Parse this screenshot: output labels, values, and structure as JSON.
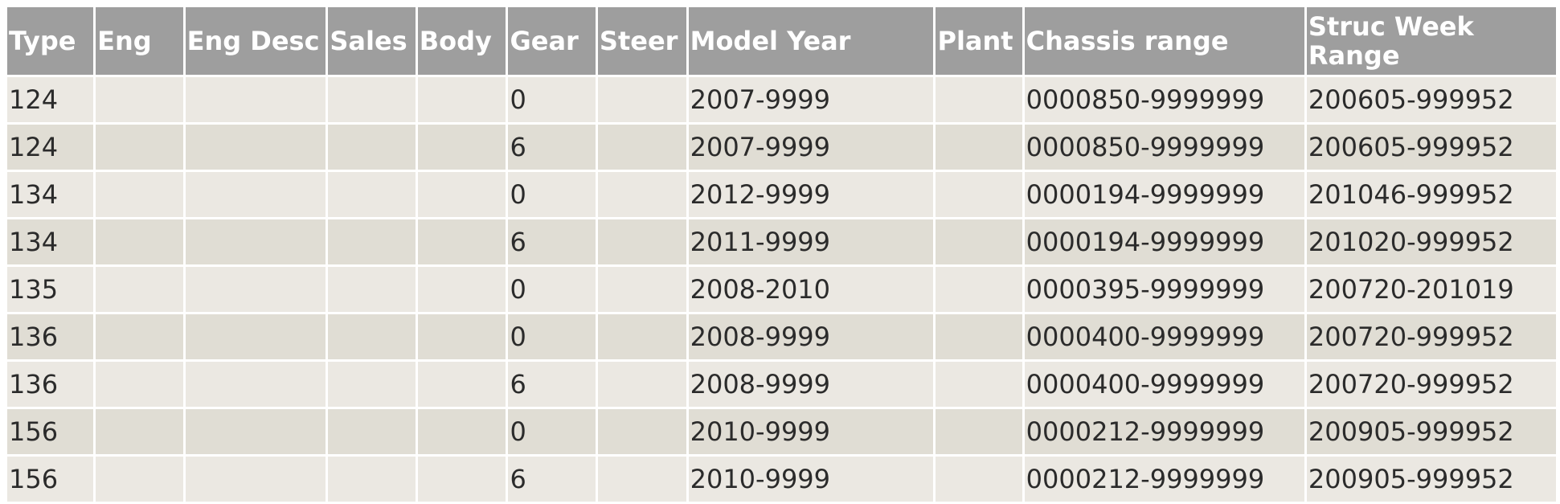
{
  "columns": [
    "Type",
    "Eng",
    "Eng Desc",
    "Sales",
    "Body",
    "Gear",
    "Steer",
    "Model Year",
    "Plant",
    "Chassis range",
    "Struc Week Range"
  ],
  "rows": [
    [
      "124",
      "",
      "",
      "",
      "",
      "0",
      "",
      "2007-9999",
      "",
      "0000850-9999999",
      "200605-999952"
    ],
    [
      "124",
      "",
      "",
      "",
      "",
      "6",
      "",
      "2007-9999",
      "",
      "0000850-9999999",
      "200605-999952"
    ],
    [
      "134",
      "",
      "",
      "",
      "",
      "0",
      "",
      "2012-9999",
      "",
      "0000194-9999999",
      "201046-999952"
    ],
    [
      "134",
      "",
      "",
      "",
      "",
      "6",
      "",
      "2011-9999",
      "",
      "0000194-9999999",
      "201020-999952"
    ],
    [
      "135",
      "",
      "",
      "",
      "",
      "0",
      "",
      "2008-2010",
      "",
      "0000395-9999999",
      "200720-201019"
    ],
    [
      "136",
      "",
      "",
      "",
      "",
      "0",
      "",
      "2008-9999",
      "",
      "0000400-9999999",
      "200720-999952"
    ],
    [
      "136",
      "",
      "",
      "",
      "",
      "6",
      "",
      "2008-9999",
      "",
      "0000400-9999999",
      "200720-999952"
    ],
    [
      "156",
      "",
      "",
      "",
      "",
      "0",
      "",
      "2010-9999",
      "",
      "0000212-9999999",
      "200905-999952"
    ],
    [
      "156",
      "",
      "",
      "",
      "",
      "6",
      "",
      "2010-9999",
      "",
      "0000212-9999999",
      "200905-999952"
    ]
  ],
  "colors": {
    "header_bg": "#9e9e9e",
    "header_text": "#ffffff",
    "row_light": "#ebe8e2",
    "row_dark": "#e0ddd4",
    "cell_text": "#2b2b2b"
  }
}
